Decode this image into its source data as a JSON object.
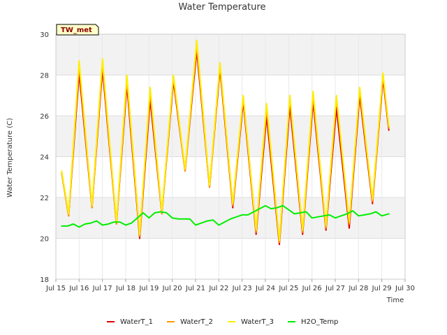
{
  "chart_data": {
    "type": "line",
    "title": "Water Temperature",
    "xlabel": "Time",
    "ylabel": "Water Temperature (C)",
    "badge": "TW_met",
    "x_unit": "day of July (Jul 15 = 15)",
    "xlim": [
      15,
      30
    ],
    "ylim": [
      18,
      30
    ],
    "x_ticks": [
      15,
      16,
      17,
      18,
      19,
      20,
      21,
      22,
      23,
      24,
      25,
      26,
      27,
      28,
      29,
      30
    ],
    "x_tick_labels": [
      "Jul 15",
      "Jul 16",
      "Jul 17",
      "Jul 18",
      "Jul 19",
      "Jul 20",
      "Jul 21",
      "Jul 22",
      "Jul 23",
      "Jul 24",
      "Jul 25",
      "Jul 26",
      "Jul 27",
      "Jul 28",
      "Jul 29",
      "Jul 30"
    ],
    "y_ticks": [
      18,
      20,
      22,
      24,
      26,
      28,
      30
    ],
    "y_tick_labels": [
      "18",
      "20",
      "22",
      "24",
      "26",
      "28",
      "30"
    ],
    "grid": true,
    "legend_position": "bottom",
    "series": [
      {
        "name": "WaterT_1",
        "color": "#dd0000",
        "x": [
          15.25,
          15.55,
          16.0,
          16.55,
          17.0,
          17.6,
          18.05,
          18.6,
          19.05,
          19.55,
          20.05,
          20.55,
          21.05,
          21.6,
          22.05,
          22.6,
          23.05,
          23.6,
          24.05,
          24.6,
          25.05,
          25.6,
          26.05,
          26.6,
          27.05,
          27.6,
          28.05,
          28.6,
          29.05,
          29.3
        ],
        "y": [
          23.2,
          21.1,
          28.1,
          21.5,
          28.3,
          20.7,
          27.5,
          20.0,
          26.8,
          21.2,
          27.7,
          23.3,
          29.2,
          22.5,
          28.3,
          21.5,
          26.7,
          20.2,
          26.0,
          19.7,
          26.5,
          20.2,
          26.7,
          20.4,
          26.4,
          20.5,
          27.0,
          21.7,
          27.8,
          25.3
        ]
      },
      {
        "name": "WaterT_2",
        "color": "#ff9900",
        "x": [
          15.25,
          15.55,
          16.0,
          16.55,
          17.0,
          17.6,
          18.05,
          18.6,
          19.05,
          19.55,
          20.05,
          20.55,
          21.05,
          21.6,
          22.05,
          22.6,
          23.05,
          23.6,
          24.05,
          24.6,
          25.05,
          25.6,
          26.05,
          26.6,
          27.05,
          27.6,
          28.05,
          28.6,
          29.05,
          29.3
        ],
        "y": [
          23.2,
          21.1,
          28.5,
          21.5,
          28.6,
          20.7,
          27.8,
          20.1,
          27.2,
          21.2,
          27.9,
          23.3,
          29.5,
          22.5,
          28.5,
          21.6,
          26.9,
          20.3,
          26.4,
          19.8,
          26.9,
          20.3,
          27.0,
          20.5,
          26.9,
          20.7,
          27.3,
          21.8,
          28.0,
          25.4
        ]
      },
      {
        "name": "WaterT_3",
        "color": "#ffee00",
        "x": [
          15.25,
          15.55,
          16.0,
          16.55,
          17.0,
          17.6,
          18.05,
          18.6,
          19.05,
          19.55,
          20.05,
          20.55,
          21.05,
          21.6,
          22.05,
          22.6,
          23.05,
          23.6,
          24.05,
          24.6,
          25.05,
          25.6,
          26.05,
          26.6,
          27.05,
          27.6,
          28.05,
          28.6,
          29.05,
          29.3
        ],
        "y": [
          23.3,
          21.2,
          28.7,
          21.6,
          28.8,
          20.8,
          28.0,
          20.2,
          27.4,
          21.3,
          28.0,
          23.4,
          29.7,
          22.6,
          28.6,
          21.7,
          27.0,
          20.4,
          26.6,
          19.9,
          27.0,
          20.4,
          27.2,
          20.6,
          27.0,
          20.8,
          27.4,
          21.9,
          28.1,
          25.5
        ]
      },
      {
        "name": "H2O_Temp",
        "color": "#00ee00",
        "x": [
          15.25,
          15.5,
          15.75,
          16.0,
          16.25,
          16.5,
          16.75,
          17.0,
          17.25,
          17.5,
          17.75,
          18.0,
          18.25,
          18.5,
          18.75,
          19.0,
          19.25,
          19.5,
          19.75,
          20.0,
          20.25,
          20.5,
          20.75,
          21.0,
          21.25,
          21.5,
          21.75,
          22.0,
          22.25,
          22.5,
          22.75,
          23.0,
          23.25,
          23.5,
          23.75,
          24.0,
          24.25,
          24.5,
          24.75,
          25.0,
          25.25,
          25.5,
          25.75,
          26.0,
          26.25,
          26.5,
          26.75,
          27.0,
          27.25,
          27.5,
          27.75,
          28.0,
          28.25,
          28.5,
          28.75,
          29.0,
          29.3
        ],
        "y": [
          20.6,
          20.6,
          20.7,
          20.55,
          20.7,
          20.75,
          20.85,
          20.65,
          20.7,
          20.8,
          20.8,
          20.65,
          20.75,
          21.0,
          21.25,
          21.0,
          21.25,
          21.3,
          21.25,
          21.0,
          20.95,
          20.95,
          20.95,
          20.65,
          20.75,
          20.85,
          20.9,
          20.65,
          20.8,
          20.95,
          21.05,
          21.15,
          21.15,
          21.3,
          21.45,
          21.6,
          21.45,
          21.5,
          21.6,
          21.4,
          21.2,
          21.25,
          21.3,
          21.0,
          21.05,
          21.1,
          21.15,
          21.0,
          21.1,
          21.2,
          21.35,
          21.1,
          21.15,
          21.2,
          21.3,
          21.1,
          21.2
        ]
      }
    ]
  }
}
